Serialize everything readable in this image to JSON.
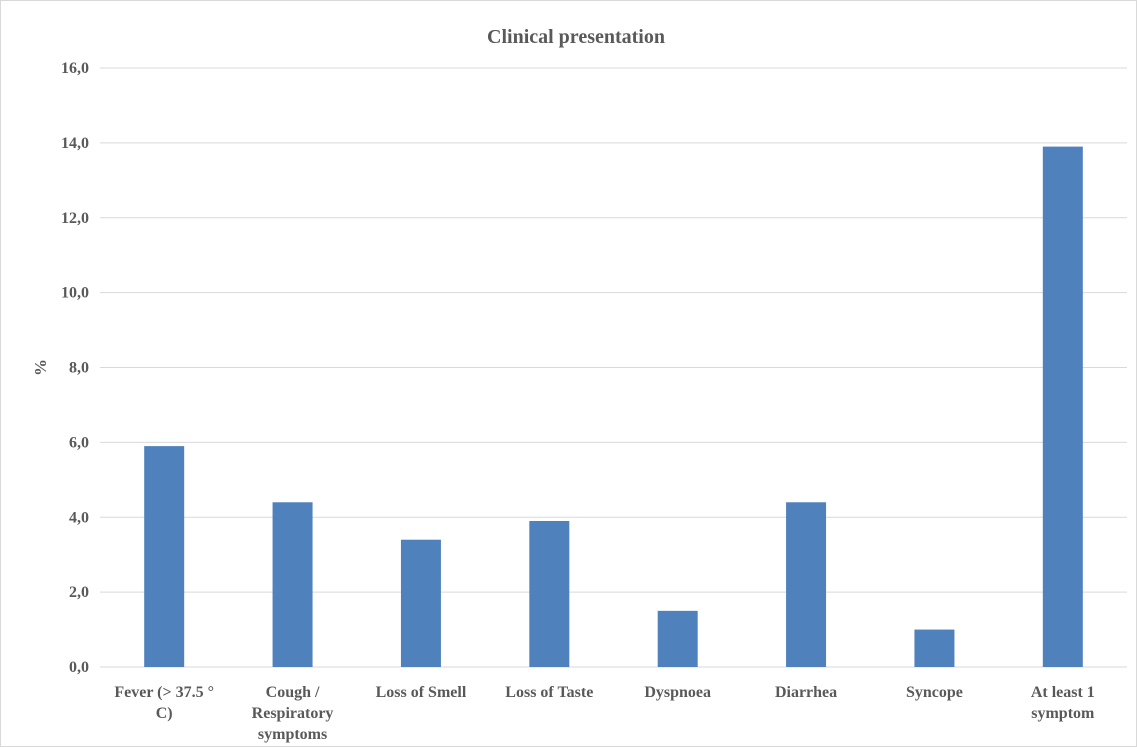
{
  "chart_data": {
    "type": "bar",
    "title": "Clinical presentation",
    "xlabel": "",
    "ylabel": "%",
    "categories": [
      [
        "Fever (> 37.5 °",
        "C)"
      ],
      [
        "Cough /",
        "Respiratory",
        "symptoms"
      ],
      [
        "Loss of Smell"
      ],
      [
        "Loss of Taste"
      ],
      [
        "Dyspnoea"
      ],
      [
        "Diarrhea"
      ],
      [
        "Syncope"
      ],
      [
        "At least 1",
        "symptom"
      ]
    ],
    "values": [
      5.9,
      4.4,
      3.4,
      3.9,
      1.5,
      4.4,
      1.0,
      13.9
    ],
    "ylim": [
      0,
      16
    ],
    "yticks": [
      0,
      2,
      4,
      6,
      8,
      10,
      12,
      14,
      16
    ],
    "ytick_labels": [
      "0,0",
      "2,0",
      "4,0",
      "6,0",
      "8,0",
      "10,0",
      "12,0",
      "14,0",
      "16,0"
    ],
    "grid": true,
    "legend": "none",
    "colors": {
      "bar": "#4f81bd",
      "grid": "#d9d9d9",
      "text": "#595959"
    }
  }
}
